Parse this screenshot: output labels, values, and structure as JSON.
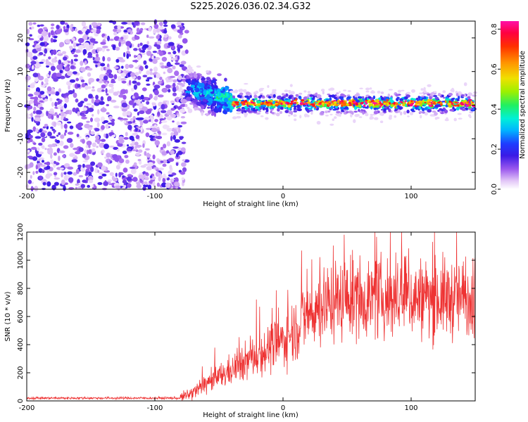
{
  "page_title": "S225.2026.036.02.34.G32",
  "chart_data": [
    {
      "type": "heatmap",
      "title": "S225.2026.036.02.34.G32",
      "xlabel": "Height of straight line (km)",
      "ylabel": "Frequency (Hz)",
      "xlim": [
        -200,
        150
      ],
      "ylim": [
        -25,
        25
      ],
      "xticks": [
        -200,
        -100,
        0,
        100
      ],
      "yticks": [
        -20,
        -10,
        0,
        10,
        20
      ],
      "colorbar": {
        "label": "Normalized spectral amplitude",
        "range": [
          0,
          0.84
        ],
        "ticks": [
          0.0,
          0.2,
          0.4,
          0.6,
          0.8
        ]
      },
      "regions": [
        {
          "name": "noise",
          "x": [
            -200,
            -75
          ],
          "freq_spread": 25,
          "amplitude": 0.1
        },
        {
          "name": "transition",
          "x": [
            -75,
            -40
          ],
          "freq_center": 5,
          "freq_spread": 6,
          "amplitude": 0.3
        },
        {
          "name": "signal",
          "x": [
            -40,
            150
          ],
          "freq_center": 0.5,
          "freq_spread": 2,
          "amplitude": 0.75
        }
      ]
    },
    {
      "type": "line",
      "xlabel": "Height of straight line (km)",
      "ylabel": "SNR (10 * v/v)",
      "xlim": [
        -200,
        150
      ],
      "ylim": [
        0,
        1200
      ],
      "xticks": [
        -200,
        -100,
        0,
        100
      ],
      "yticks": [
        0,
        200,
        400,
        600,
        800,
        1000,
        1200
      ],
      "color": "#ee3333",
      "trend": [
        {
          "x": -200,
          "y": 20
        },
        {
          "x": -80,
          "y": 20
        },
        {
          "x": -70,
          "y": 60
        },
        {
          "x": -60,
          "y": 120
        },
        {
          "x": -40,
          "y": 220
        },
        {
          "x": -20,
          "y": 330
        },
        {
          "x": 0,
          "y": 430
        },
        {
          "x": 10,
          "y": 520
        },
        {
          "x": 20,
          "y": 620
        },
        {
          "x": 35,
          "y": 700
        },
        {
          "x": 50,
          "y": 730
        },
        {
          "x": 150,
          "y": 730
        }
      ]
    }
  ]
}
